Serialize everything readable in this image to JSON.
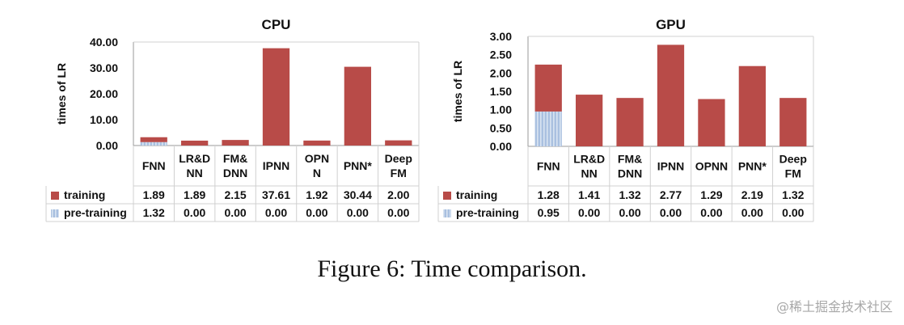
{
  "colors": {
    "training": "#b84b48",
    "pretraining": "#a9c0e0"
  },
  "figure": {
    "caption": "Figure 6: Time comparison.",
    "watermark": "@稀土掘金技术社区"
  },
  "chart_data": [
    {
      "type": "bar",
      "stacked": true,
      "title": "CPU",
      "ylabel": "times of LR",
      "ylim": [
        0,
        40
      ],
      "yticks": [
        "40.00",
        "30.00",
        "20.00",
        "10.00",
        "0.00"
      ],
      "categories": [
        [
          "FNN"
        ],
        [
          "LR&D",
          "NN"
        ],
        [
          "FM&",
          "DNN"
        ],
        [
          "IPNN"
        ],
        [
          "OPN",
          "N"
        ],
        [
          "PNN*"
        ],
        [
          "Deep",
          "FM"
        ]
      ],
      "series": [
        {
          "name": "training",
          "values": [
            1.89,
            1.89,
            2.15,
            37.61,
            1.92,
            30.44,
            2.0
          ],
          "labels": [
            "1.89",
            "1.89",
            "2.15",
            "37.61",
            "1.92",
            "30.44",
            "2.00"
          ]
        },
        {
          "name": "pre-training",
          "values": [
            1.32,
            0.0,
            0.0,
            0.0,
            0.0,
            0.0,
            0.0
          ],
          "labels": [
            "1.32",
            "0.00",
            "0.00",
            "0.00",
            "0.00",
            "0.00",
            "0.00"
          ]
        }
      ],
      "grid": true,
      "legend": "table-below"
    },
    {
      "type": "bar",
      "stacked": true,
      "title": "GPU",
      "ylabel": "times of LR",
      "ylim": [
        0,
        3
      ],
      "yticks": [
        "3.00",
        "2.50",
        "2.00",
        "1.50",
        "1.00",
        "0.50",
        "0.00"
      ],
      "categories": [
        [
          "FNN"
        ],
        [
          "LR&D",
          "NN"
        ],
        [
          "FM&",
          "DNN"
        ],
        [
          "IPNN"
        ],
        [
          "OPNN"
        ],
        [
          "PNN*"
        ],
        [
          "Deep",
          "FM"
        ]
      ],
      "series": [
        {
          "name": "training",
          "values": [
            1.28,
            1.41,
            1.32,
            2.77,
            1.29,
            2.19,
            1.32
          ],
          "labels": [
            "1.28",
            "1.41",
            "1.32",
            "2.77",
            "1.29",
            "2.19",
            "1.32"
          ]
        },
        {
          "name": "pre-training",
          "values": [
            0.95,
            0.0,
            0.0,
            0.0,
            0.0,
            0.0,
            0.0
          ],
          "labels": [
            "0.95",
            "0.00",
            "0.00",
            "0.00",
            "0.00",
            "0.00",
            "0.00"
          ]
        }
      ],
      "grid": true,
      "legend": "table-below"
    }
  ]
}
